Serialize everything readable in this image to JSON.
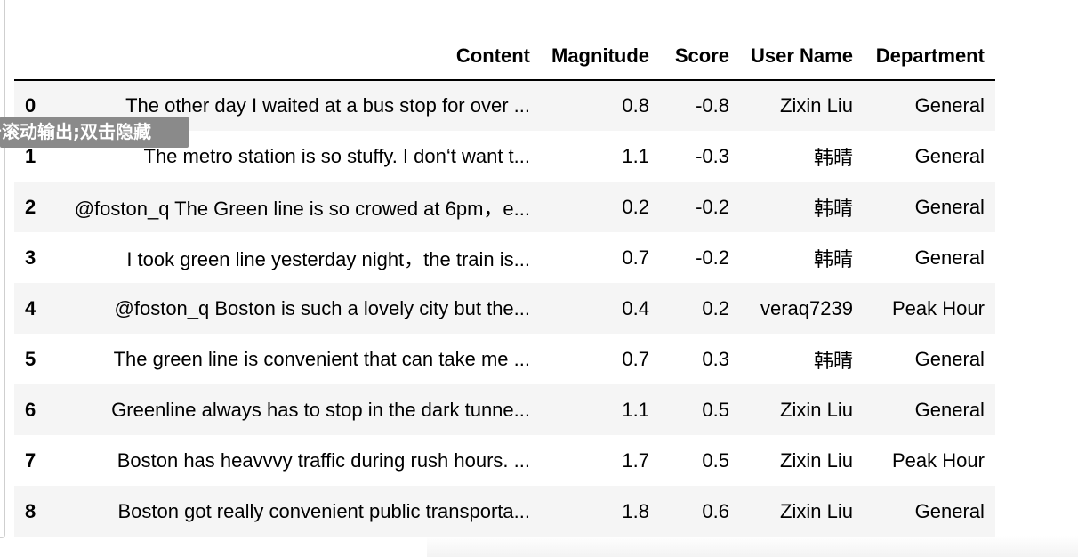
{
  "table": {
    "columns": [
      "Content",
      "Magnitude",
      "Score",
      "User Name",
      "Department"
    ],
    "rows": [
      {
        "index": "0",
        "content": "The other day I waited at a bus stop for over ...",
        "magnitude": "0.8",
        "score": "-0.8",
        "user": "Zixin Liu",
        "department": "General"
      },
      {
        "index": "1",
        "content": "The metro station is so stuffy. I don‘t want t...",
        "magnitude": "1.1",
        "score": "-0.3",
        "user": "韩晴",
        "department": "General"
      },
      {
        "index": "2",
        "content": "@foston_q The Green line is so crowed at 6pm，e...",
        "magnitude": "0.2",
        "score": "-0.2",
        "user": "韩晴",
        "department": "General"
      },
      {
        "index": "3",
        "content": "I took green line yesterday night，the train is...",
        "magnitude": "0.7",
        "score": "-0.2",
        "user": "韩晴",
        "department": "General"
      },
      {
        "index": "4",
        "content": "@foston_q Boston is such a lovely city but the...",
        "magnitude": "0.4",
        "score": "0.2",
        "user": "veraq7239",
        "department": "Peak Hour"
      },
      {
        "index": "5",
        "content": "The green line is convenient that can take me ...",
        "magnitude": "0.7",
        "score": "0.3",
        "user": "韩晴",
        "department": "General"
      },
      {
        "index": "6",
        "content": "Greenline always has to stop in the dark tunne...",
        "magnitude": "1.1",
        "score": "0.5",
        "user": "Zixin Liu",
        "department": "General"
      },
      {
        "index": "7",
        "content": "Boston has heavvvy traffic during rush hours. ...",
        "magnitude": "1.7",
        "score": "0.5",
        "user": "Zixin Liu",
        "department": "Peak Hour"
      },
      {
        "index": "8",
        "content": "Boston got really convenient public transporta...",
        "magnitude": "1.8",
        "score": "0.6",
        "user": "Zixin Liu",
        "department": "General"
      }
    ]
  },
  "tooltip": {
    "text": "击滚动输出;双击隐藏"
  }
}
